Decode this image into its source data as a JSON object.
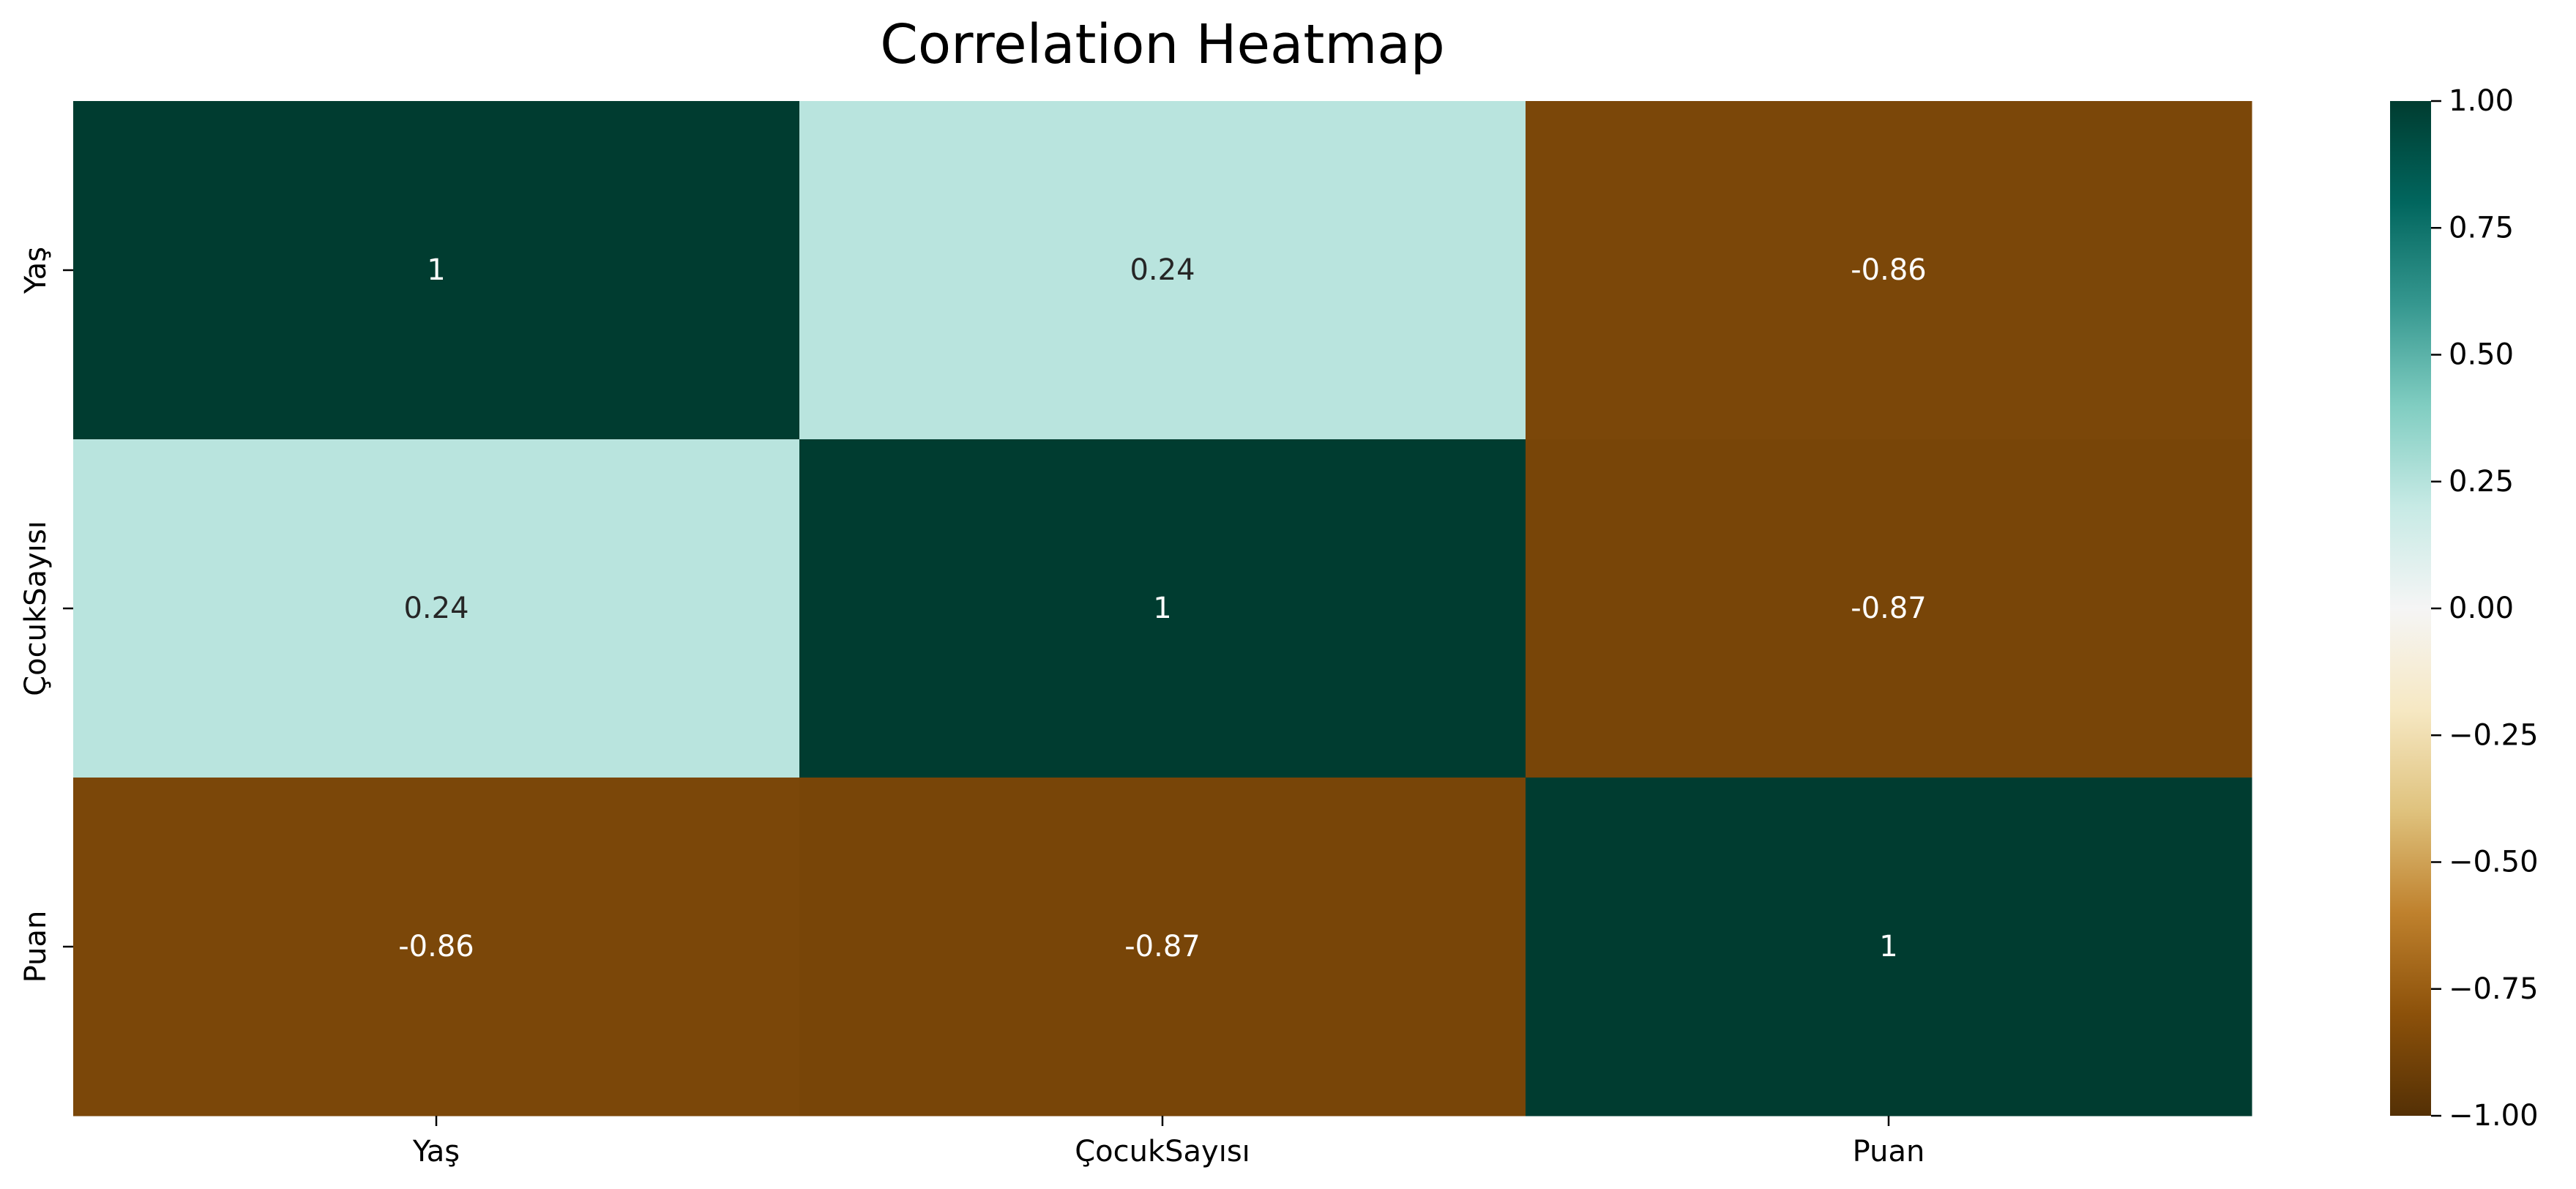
{
  "chart_data": {
    "type": "heatmap",
    "title": "Correlation Heatmap",
    "x_labels": [
      "Yaş",
      "ÇocukSayısı",
      "Puan"
    ],
    "y_labels": [
      "Yaş",
      "ÇocukSayısı",
      "Puan"
    ],
    "values": [
      [
        1.0,
        0.24,
        -0.86
      ],
      [
        0.24,
        1.0,
        -0.87
      ],
      [
        -0.86,
        -0.87,
        1.0
      ]
    ],
    "annotations": [
      [
        "1",
        "0.24",
        "-0.86"
      ],
      [
        "0.24",
        "1",
        "-0.87"
      ],
      [
        "-0.86",
        "-0.87",
        "1"
      ]
    ],
    "colormap": "BrBG",
    "vmin": -1.0,
    "vmax": 1.0,
    "colorbar_ticks": [
      1.0,
      0.75,
      0.5,
      0.25,
      0.0,
      -0.25,
      -0.5,
      -0.75,
      -1.0
    ],
    "colorbar_tick_labels": [
      "1.00",
      "0.75",
      "0.50",
      "0.25",
      "0.00",
      "−0.25",
      "−0.50",
      "−0.75",
      "−1.00"
    ],
    "colorbar_placement": "right",
    "grid": false
  }
}
